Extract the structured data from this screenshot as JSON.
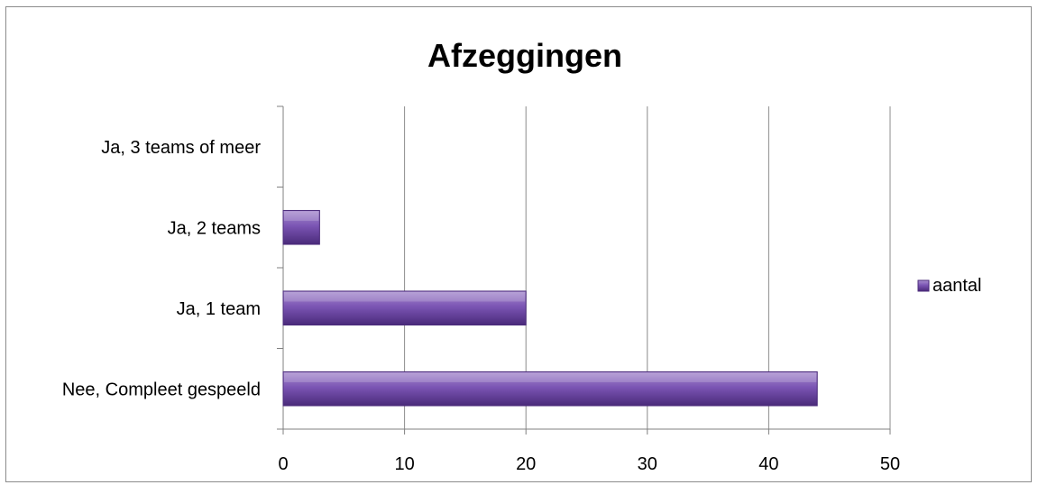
{
  "chart_data": {
    "type": "bar",
    "orientation": "horizontal",
    "title": "Afzeggingen",
    "xlabel": "",
    "ylabel": "",
    "categories": [
      "Nee, Compleet gespeeld",
      "Ja, 1 team",
      "Ja, 2 teams",
      "Ja, 3 teams of meer"
    ],
    "series": [
      {
        "name": "aantal",
        "values": [
          44,
          20,
          3,
          0
        ]
      }
    ],
    "xlim": [
      0,
      50
    ],
    "xticks": [
      "0",
      "10",
      "20",
      "30",
      "40",
      "50"
    ],
    "grid": "vertical",
    "legend": "right",
    "colors": {
      "bar_light": "#a98fcf",
      "bar_mid": "#7b55b4",
      "bar_dark": "#4a2a7a",
      "gridline": "#8c8c8c",
      "axis": "#808080",
      "text": "#000000"
    }
  }
}
